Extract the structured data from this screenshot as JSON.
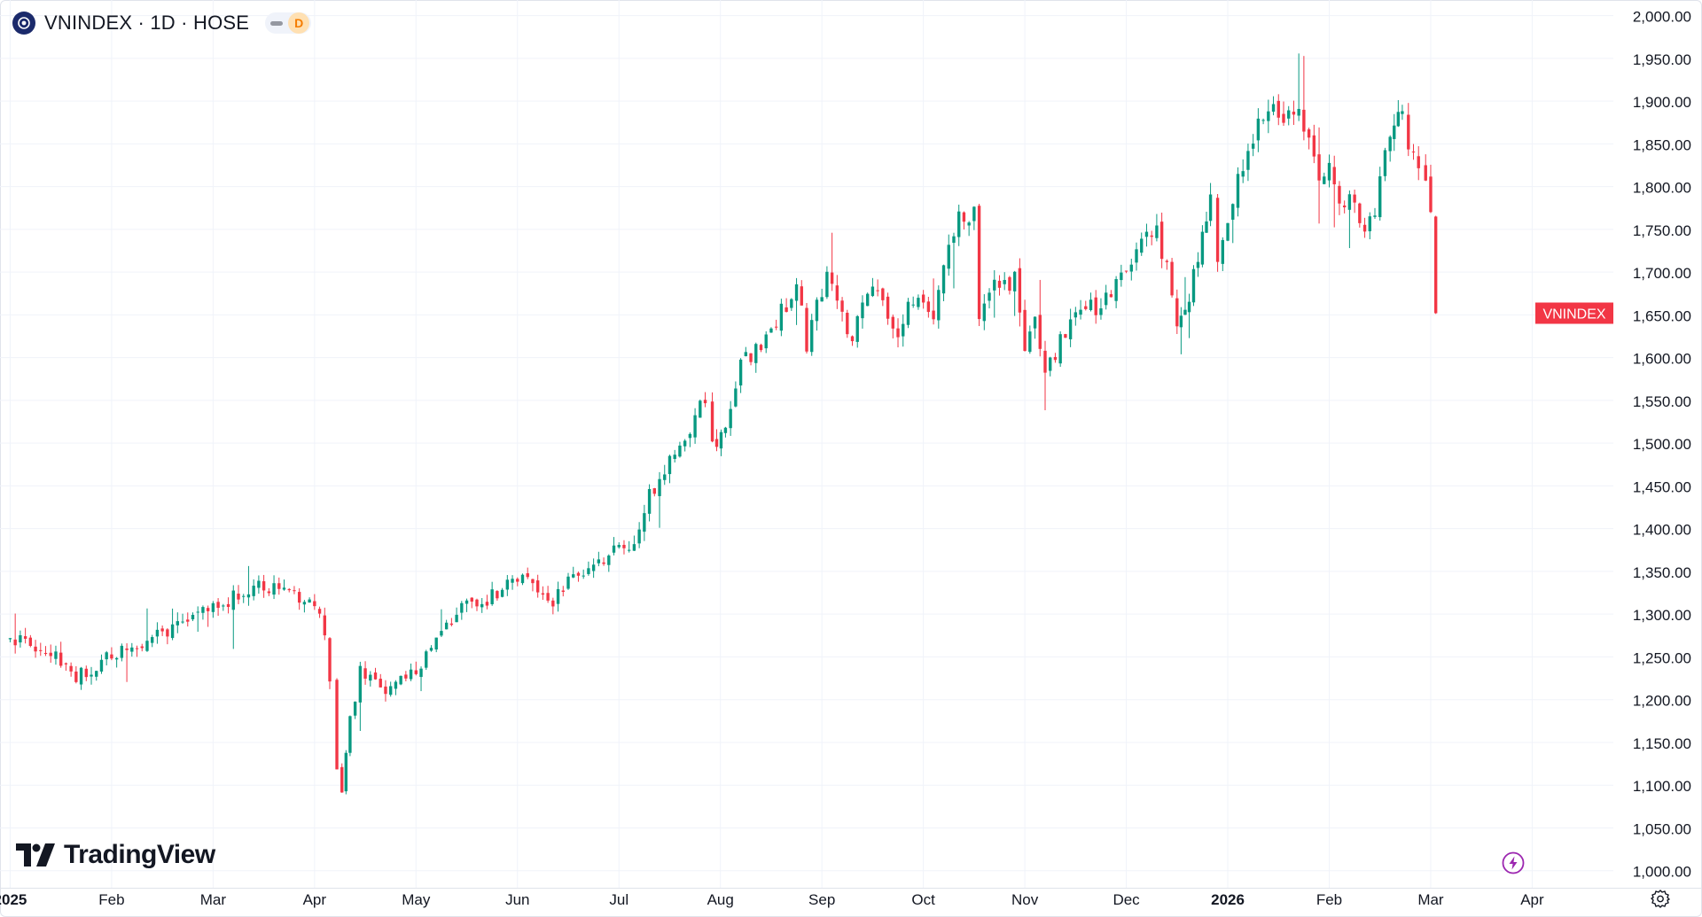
{
  "header": {
    "title": "VNINDEX · 1D · HOSE",
    "interval_badge": "D"
  },
  "branding": {
    "logo_text": "TradingView"
  },
  "colors": {
    "up": "#089981",
    "down": "#f23645",
    "grid": "#f0f3fa",
    "text": "#131722",
    "accent": "#9c27b0"
  },
  "icons": [
    "symbol-logo-icon",
    "flash-icon",
    "settings-gear-icon",
    "tradingview-logo-icon"
  ],
  "chart_data": {
    "type": "candlestick",
    "title": "VNINDEX · 1D · HOSE",
    "series_label": "VNINDEX",
    "last_value": 1652,
    "ylim": [
      980,
      2010
    ],
    "y_ticks": [
      1000,
      1050,
      1100,
      1150,
      1200,
      1250,
      1300,
      1350,
      1400,
      1450,
      1500,
      1550,
      1600,
      1650,
      1700,
      1750,
      1800,
      1850,
      1900,
      1950,
      2000
    ],
    "y_tick_labels": [
      "1,000.00",
      "1,050.00",
      "1,100.00",
      "1,150.00",
      "1,200.00",
      "1,250.00",
      "1,300.00",
      "1,350.00",
      "1,400.00",
      "1,450.00",
      "1,500.00",
      "1,550.00",
      "1,600.00",
      "1,650.00",
      "1,700.00",
      "1,750.00",
      "1,800.00",
      "1,850.00",
      "1,900.00",
      "1,950.00",
      "2,000.00"
    ],
    "x_range_months": [
      -0.1,
      15.8
    ],
    "x_ticks": [
      {
        "label": "2025",
        "month": 0,
        "bold": true
      },
      {
        "label": "Feb",
        "month": 1
      },
      {
        "label": "Mar",
        "month": 2
      },
      {
        "label": "Apr",
        "month": 3
      },
      {
        "label": "May",
        "month": 4
      },
      {
        "label": "Jun",
        "month": 5
      },
      {
        "label": "Jul",
        "month": 6
      },
      {
        "label": "Aug",
        "month": 7
      },
      {
        "label": "Sep",
        "month": 8
      },
      {
        "label": "Oct",
        "month": 9
      },
      {
        "label": "Nov",
        "month": 10
      },
      {
        "label": "Dec",
        "month": 11
      },
      {
        "label": "2026",
        "month": 12,
        "bold": true
      },
      {
        "label": "Feb",
        "month": 13
      },
      {
        "label": "Mar",
        "month": 14
      },
      {
        "label": "Apr",
        "month": 15
      }
    ],
    "price_path": [
      {
        "month": -0.05,
        "close": 1268
      },
      {
        "month": 0.1,
        "close": 1275
      },
      {
        "month": 0.3,
        "close": 1262
      },
      {
        "month": 0.5,
        "close": 1243
      },
      {
        "month": 0.65,
        "close": 1225
      },
      {
        "month": 0.85,
        "close": 1240
      },
      {
        "month": 1.1,
        "close": 1262
      },
      {
        "month": 1.4,
        "close": 1270
      },
      {
        "month": 1.7,
        "close": 1292
      },
      {
        "month": 2.0,
        "close": 1305
      },
      {
        "month": 2.3,
        "close": 1330
      },
      {
        "month": 2.6,
        "close": 1330
      },
      {
        "month": 2.8,
        "close": 1325
      },
      {
        "month": 3.0,
        "close": 1312
      },
      {
        "month": 3.1,
        "close": 1275
      },
      {
        "month": 3.15,
        "close": 1220
      },
      {
        "month": 3.22,
        "close": 1120
      },
      {
        "month": 3.27,
        "close": 1094
      },
      {
        "month": 3.35,
        "close": 1175
      },
      {
        "month": 3.45,
        "close": 1235
      },
      {
        "month": 3.7,
        "close": 1210
      },
      {
        "month": 4.0,
        "close": 1235
      },
      {
        "month": 4.3,
        "close": 1285
      },
      {
        "month": 4.55,
        "close": 1318
      },
      {
        "month": 4.8,
        "close": 1320
      },
      {
        "month": 5.0,
        "close": 1345
      },
      {
        "month": 5.15,
        "close": 1335
      },
      {
        "month": 5.3,
        "close": 1308
      },
      {
        "month": 5.5,
        "close": 1340
      },
      {
        "month": 5.8,
        "close": 1362
      },
      {
        "month": 6.15,
        "close": 1385
      },
      {
        "month": 6.3,
        "close": 1440
      },
      {
        "month": 6.5,
        "close": 1480
      },
      {
        "month": 6.7,
        "close": 1515
      },
      {
        "month": 6.85,
        "close": 1555
      },
      {
        "month": 6.92,
        "close": 1495
      },
      {
        "month": 7.05,
        "close": 1510
      },
      {
        "month": 7.2,
        "close": 1590
      },
      {
        "month": 7.45,
        "close": 1625
      },
      {
        "month": 7.65,
        "close": 1660
      },
      {
        "month": 7.75,
        "close": 1690
      },
      {
        "month": 7.85,
        "close": 1615
      },
      {
        "month": 7.95,
        "close": 1670
      },
      {
        "month": 8.05,
        "close": 1695
      },
      {
        "month": 8.15,
        "close": 1660
      },
      {
        "month": 8.3,
        "close": 1620
      },
      {
        "month": 8.45,
        "close": 1685
      },
      {
        "month": 8.6,
        "close": 1665
      },
      {
        "month": 8.7,
        "close": 1625
      },
      {
        "month": 8.9,
        "close": 1665
      },
      {
        "month": 9.1,
        "close": 1645
      },
      {
        "month": 9.2,
        "close": 1700
      },
      {
        "month": 9.35,
        "close": 1760
      },
      {
        "month": 9.5,
        "close": 1765
      },
      {
        "month": 9.55,
        "close": 1640
      },
      {
        "month": 9.7,
        "close": 1680
      },
      {
        "month": 9.9,
        "close": 1690
      },
      {
        "month": 10.0,
        "close": 1615
      },
      {
        "month": 10.1,
        "close": 1655
      },
      {
        "month": 10.2,
        "close": 1580
      },
      {
        "month": 10.35,
        "close": 1620
      },
      {
        "month": 10.55,
        "close": 1650
      },
      {
        "month": 10.8,
        "close": 1665
      },
      {
        "month": 11.0,
        "close": 1700
      },
      {
        "month": 11.15,
        "close": 1735
      },
      {
        "month": 11.3,
        "close": 1750
      },
      {
        "month": 11.4,
        "close": 1700
      },
      {
        "month": 11.5,
        "close": 1640
      },
      {
        "month": 11.62,
        "close": 1665
      },
      {
        "month": 11.75,
        "close": 1745
      },
      {
        "month": 11.83,
        "close": 1780
      },
      {
        "month": 11.9,
        "close": 1710
      },
      {
        "month": 12.05,
        "close": 1780
      },
      {
        "month": 12.15,
        "close": 1830
      },
      {
        "month": 12.3,
        "close": 1880
      },
      {
        "month": 12.4,
        "close": 1900
      },
      {
        "month": 12.5,
        "close": 1875
      },
      {
        "month": 12.6,
        "close": 1900
      },
      {
        "month": 12.75,
        "close": 1870
      },
      {
        "month": 12.9,
        "close": 1810
      },
      {
        "month": 13.0,
        "close": 1830
      },
      {
        "month": 13.1,
        "close": 1780
      },
      {
        "month": 13.2,
        "close": 1795
      },
      {
        "month": 13.3,
        "close": 1755
      },
      {
        "month": 13.4,
        "close": 1755
      },
      {
        "month": 13.5,
        "close": 1800
      },
      {
        "month": 13.6,
        "close": 1860
      },
      {
        "month": 13.72,
        "close": 1882
      },
      {
        "month": 13.78,
        "close": 1850
      },
      {
        "month": 13.88,
        "close": 1810
      },
      {
        "month": 13.95,
        "close": 1800
      },
      {
        "month": 14.0,
        "close": 1765
      },
      {
        "month": 14.05,
        "close": 1652
      }
    ],
    "candle_seed": 20250
  }
}
